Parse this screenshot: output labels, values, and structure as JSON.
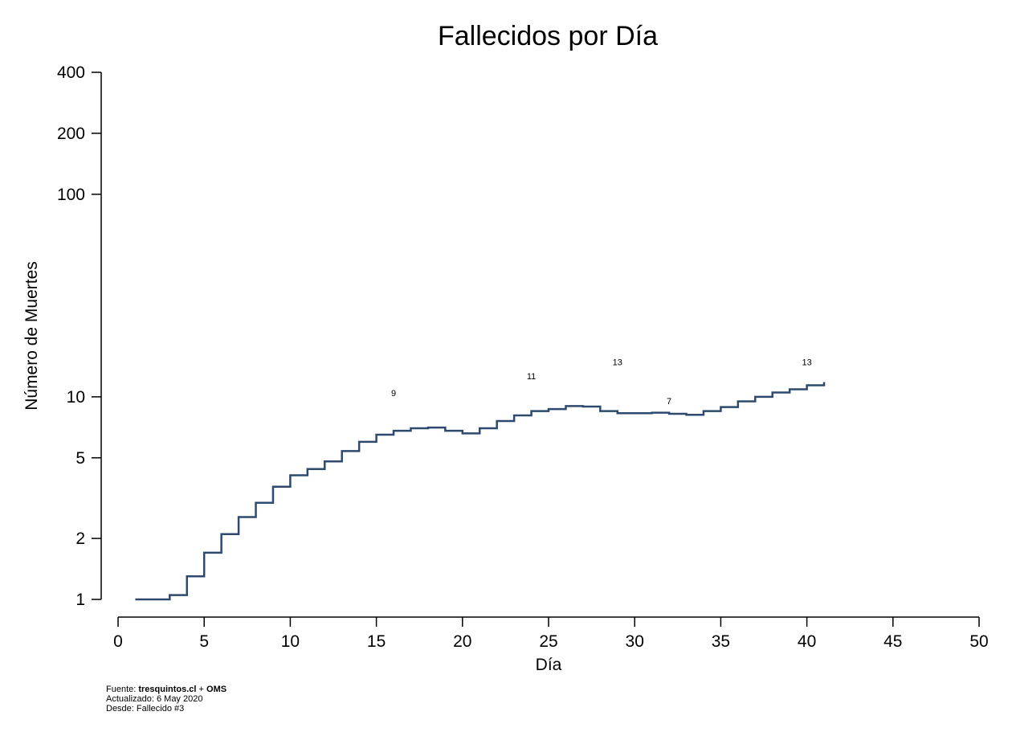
{
  "chart_data": {
    "type": "line",
    "title": "Fallecidos por Día",
    "xlabel": "Día",
    "ylabel": "Número de Muertes",
    "xlim": [
      0,
      50
    ],
    "ylim": [
      1,
      400
    ],
    "y_scale": "log",
    "x_ticks": [
      "0",
      "5",
      "10",
      "15",
      "20",
      "25",
      "30",
      "35",
      "40",
      "45",
      "50"
    ],
    "y_ticks": [
      "1",
      "2",
      "5",
      "10",
      "100",
      "200",
      "400"
    ],
    "y_tick_values": [
      1,
      2,
      5,
      10,
      100,
      200,
      400
    ],
    "step": true,
    "grid": false,
    "series": [
      {
        "color": "#2d4a6e",
        "x": [
          1,
          2,
          3,
          4,
          5,
          6,
          7,
          8,
          9,
          10,
          11,
          12,
          13,
          14,
          15,
          16,
          17,
          18,
          19,
          20,
          21,
          22,
          23,
          24,
          25,
          26,
          27,
          28,
          29,
          30,
          31,
          32,
          33,
          34,
          35,
          36,
          37,
          38,
          39,
          40,
          41
        ],
        "values": [
          1,
          1,
          1.05,
          1.3,
          1.7,
          2.1,
          2.55,
          3.0,
          3.6,
          4.1,
          4.4,
          4.8,
          5.4,
          6.0,
          6.5,
          6.8,
          7.0,
          7.05,
          6.8,
          6.6,
          7.0,
          7.6,
          8.1,
          8.5,
          8.7,
          9.0,
          8.95,
          8.5,
          8.3,
          8.3,
          8.35,
          8.25,
          8.15,
          8.5,
          8.9,
          9.5,
          10.0,
          10.5,
          10.9,
          11.4,
          11.4
        ]
      }
    ],
    "annotations": [
      {
        "x": 16,
        "y": 10.1,
        "text": "9"
      },
      {
        "x": 24,
        "y": 12.2,
        "text": "11"
      },
      {
        "x": 29,
        "y": 14.3,
        "text": "13"
      },
      {
        "x": 32,
        "y": 9.2,
        "text": "7"
      },
      {
        "x": 40,
        "y": 14.3,
        "text": "13"
      }
    ]
  },
  "footer": {
    "source_prefix": "Fuente: ",
    "source_bold": "tresquintos.cl",
    "source_plus": " + ",
    "source_bold2": "OMS",
    "updated": "Actualizado: 6 May 2020",
    "since": "Desde: Fallecido #3"
  }
}
